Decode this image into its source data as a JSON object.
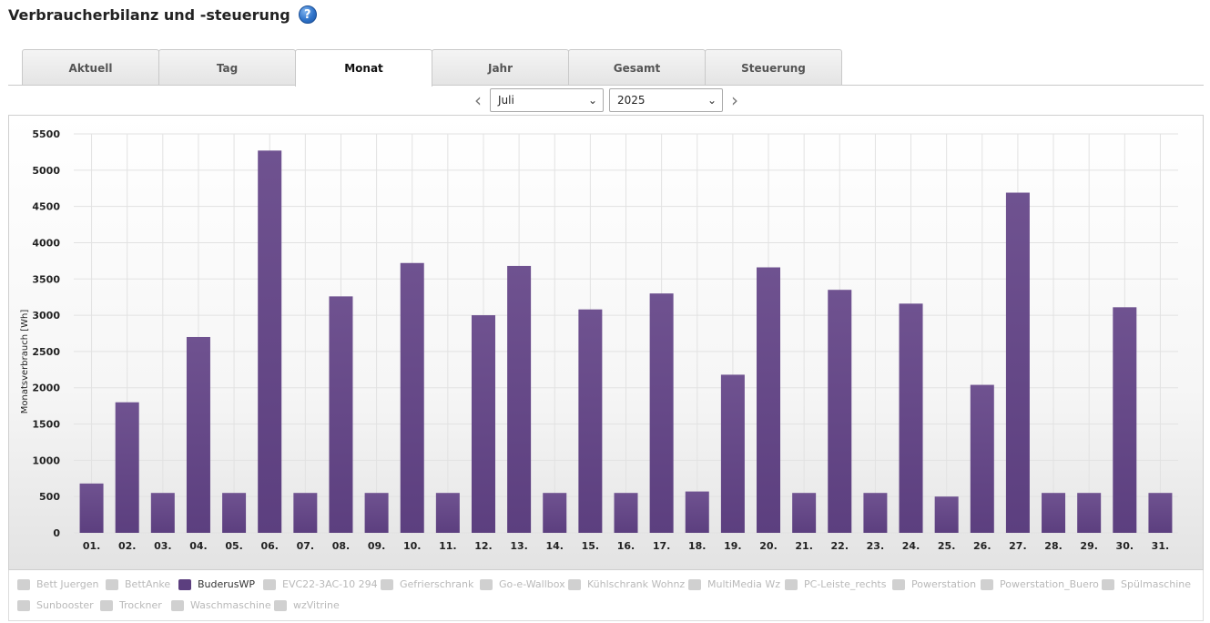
{
  "header": {
    "title": "Verbraucherbilanz und -steuerung",
    "help_glyph": "?"
  },
  "tabs": [
    {
      "label": "Aktuell",
      "active": false
    },
    {
      "label": "Tag",
      "active": false
    },
    {
      "label": "Monat",
      "active": true
    },
    {
      "label": "Jahr",
      "active": false
    },
    {
      "label": "Gesamt",
      "active": false
    },
    {
      "label": "Steuerung",
      "active": false
    }
  ],
  "period": {
    "prev_glyph": "‹",
    "next_glyph": "›",
    "month": "Juli",
    "year": "2025",
    "chevron": "⌄"
  },
  "colors": {
    "bar": "#5c3f7f",
    "bar_top": "#6f5290",
    "grid": "#e2e2e2",
    "legend_off": "#d0d0d0"
  },
  "chart_data": {
    "type": "bar",
    "title": "",
    "xlabel": "",
    "ylabel": "Monatsverbrauch [Wh]",
    "ylim": [
      0,
      5500
    ],
    "yticks": [
      "0",
      "500",
      "1000",
      "1500",
      "2000",
      "2500",
      "3000",
      "3500",
      "4000",
      "4500",
      "5000",
      "5500"
    ],
    "grid": true,
    "legend_position": "bottom",
    "categories": [
      "01.",
      "02.",
      "03.",
      "04.",
      "05.",
      "06.",
      "07.",
      "08.",
      "09.",
      "10.",
      "11.",
      "12.",
      "13.",
      "14.",
      "15.",
      "16.",
      "17.",
      "18.",
      "19.",
      "20.",
      "21.",
      "22.",
      "23.",
      "24.",
      "25.",
      "26.",
      "27.",
      "28.",
      "29.",
      "30.",
      "31."
    ],
    "series": [
      {
        "name": "BuderusWP",
        "values": [
          680,
          1800,
          550,
          2700,
          550,
          5270,
          550,
          3260,
          550,
          3720,
          550,
          3000,
          3680,
          550,
          3080,
          550,
          3300,
          570,
          2180,
          3660,
          550,
          3350,
          550,
          3160,
          500,
          2040,
          4690,
          550,
          550,
          3110,
          550
        ]
      }
    ]
  },
  "legend": [
    {
      "label": "Bett Juergen",
      "active": false
    },
    {
      "label": "BettAnke",
      "active": false
    },
    {
      "label": "BuderusWP",
      "active": true
    },
    {
      "label": "EVC22-3AC-10 294",
      "active": false
    },
    {
      "label": "Gefrierschrank",
      "active": false
    },
    {
      "label": "Go-e-Wallbox",
      "active": false
    },
    {
      "label": "Kühlschrank Wohnz",
      "active": false
    },
    {
      "label": "MultiMedia Wz",
      "active": false
    },
    {
      "label": "PC-Leiste_rechts",
      "active": false
    },
    {
      "label": "Powerstation",
      "active": false
    },
    {
      "label": "Powerstation_Buero",
      "active": false
    },
    {
      "label": "Spülmaschine",
      "active": false
    },
    {
      "label": "Sunbooster",
      "active": false
    },
    {
      "label": "Trockner",
      "active": false
    },
    {
      "label": "Waschmaschine",
      "active": false
    },
    {
      "label": "wzVitrine",
      "active": false
    }
  ]
}
